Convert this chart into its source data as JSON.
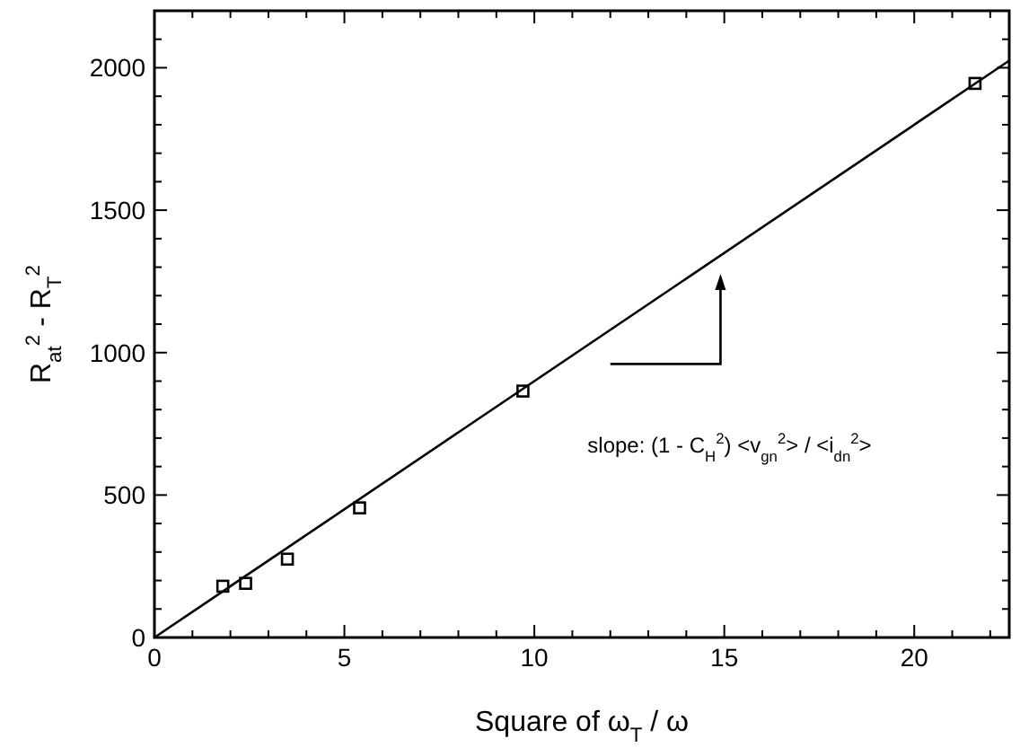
{
  "chart_data": {
    "type": "scatter",
    "xlabel": "Square of ω$_{T}$ / ω",
    "ylabel": "R$_{at}$$^{2}$ - R$_{T}$$^{2}$",
    "annotations": [
      "slope:  (1 - C$_{H}$$^{2}$) <v$_{gn}$$^{2}$> / <i$_{dn}$$^{2}$>"
    ],
    "series": [
      {
        "color": "#000000",
        "marker": "square",
        "x": [
          1.8,
          2.4,
          3.5,
          5.4,
          9.7,
          21.6
        ],
        "values": [
          180,
          190,
          275,
          455,
          865,
          1945
        ]
      },
      {
        "type": "line",
        "color": "#000000",
        "line_style": "solid",
        "x": [
          0,
          22.5
        ],
        "values": [
          0,
          2025
        ]
      }
    ],
    "xlim": [
      0,
      22.5
    ],
    "ylim": [
      0,
      2200
    ],
    "xticks": [
      0,
      {
        "value": 1,
        "label": null
      },
      {
        "value": 2,
        "label": null
      },
      {
        "value": 3,
        "label": null
      },
      {
        "value": 4,
        "label": null
      },
      5,
      {
        "value": 6,
        "label": null
      },
      {
        "value": 7,
        "label": null
      },
      {
        "value": 8,
        "label": null
      },
      {
        "value": 9,
        "label": null
      },
      10,
      {
        "value": 11,
        "label": null
      },
      {
        "value": 12,
        "label": null
      },
      {
        "value": 13,
        "label": null
      },
      {
        "value": 14,
        "label": null
      },
      15,
      {
        "value": 16,
        "label": null
      },
      {
        "value": 17,
        "label": null
      },
      {
        "value": 18,
        "label": null
      },
      {
        "value": 19,
        "label": null
      },
      20,
      {
        "value": 21,
        "label": null
      },
      {
        "value": 22,
        "label": null
      }
    ],
    "yticks": [
      0,
      {
        "value": 100,
        "label": null
      },
      {
        "value": 200,
        "label": null
      },
      {
        "value": 300,
        "label": null
      },
      {
        "value": 400,
        "label": null
      },
      500,
      {
        "value": 600,
        "label": null
      },
      {
        "value": 700,
        "label": null
      },
      {
        "value": 800,
        "label": null
      },
      {
        "value": 900,
        "label": null
      },
      1000,
      {
        "value": 1100,
        "label": null
      },
      {
        "value": 1200,
        "label": null
      },
      {
        "value": 1300,
        "label": null
      },
      {
        "value": 1400,
        "label": null
      },
      1500,
      {
        "value": 1600,
        "label": null
      },
      {
        "value": 1700,
        "label": null
      },
      {
        "value": 1800,
        "label": null
      },
      {
        "value": 1900,
        "label": null
      },
      2000,
      {
        "value": 2100,
        "label": null
      }
    ],
    "grid": false
  }
}
